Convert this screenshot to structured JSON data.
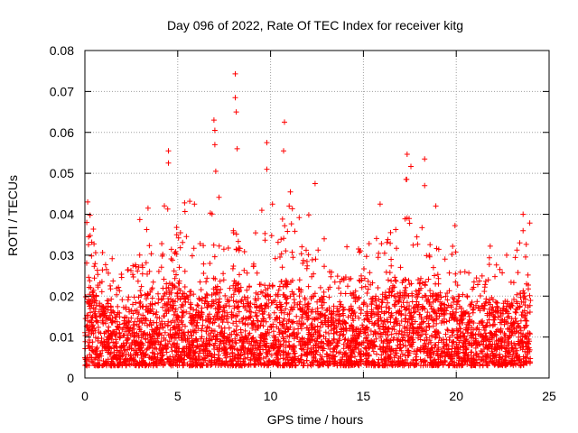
{
  "chart_data": {
    "type": "scatter",
    "title": "Day 096 of 2022, Rate Of TEC Index for receiver kitg",
    "xlabel": "GPS time / hours",
    "ylabel": "ROTI / TECUs",
    "xlim": [
      0,
      25
    ],
    "ylim": [
      0,
      0.08
    ],
    "x_ticks": [
      0,
      5,
      10,
      15,
      20,
      25
    ],
    "x_tick_labels": [
      "0",
      "5",
      "10",
      "15",
      "20",
      "25"
    ],
    "y_ticks": [
      0,
      0.01,
      0.02,
      0.03,
      0.04,
      0.05,
      0.06,
      0.07,
      0.08
    ],
    "y_tick_labels": [
      "0",
      "0.01",
      "0.02",
      "0.03",
      "0.04",
      "0.05",
      "0.06",
      "0.07",
      "0.08"
    ],
    "grid": true,
    "marker": "+",
    "color": "#ff0000",
    "series": [
      {
        "name": "ROTI",
        "x_range": [
          0,
          24
        ],
        "typical_band": [
          0.003,
          0.025
        ],
        "notable_points": [
          {
            "x": 8.1,
            "y": 0.0743
          },
          {
            "x": 8.1,
            "y": 0.0685
          },
          {
            "x": 8.15,
            "y": 0.065
          },
          {
            "x": 6.95,
            "y": 0.063
          },
          {
            "x": 7.0,
            "y": 0.0605
          },
          {
            "x": 7.0,
            "y": 0.057
          },
          {
            "x": 10.75,
            "y": 0.0625
          },
          {
            "x": 10.7,
            "y": 0.0555
          },
          {
            "x": 9.8,
            "y": 0.0575
          },
          {
            "x": 4.5,
            "y": 0.0555
          },
          {
            "x": 4.5,
            "y": 0.0525
          },
          {
            "x": 8.2,
            "y": 0.056
          },
          {
            "x": 18.3,
            "y": 0.0535
          },
          {
            "x": 9.8,
            "y": 0.051
          },
          {
            "x": 7.05,
            "y": 0.0505
          },
          {
            "x": 17.3,
            "y": 0.0485
          },
          {
            "x": 18.3,
            "y": 0.047
          },
          {
            "x": 12.4,
            "y": 0.0475
          },
          {
            "x": 0.15,
            "y": 0.043
          },
          {
            "x": 18.9,
            "y": 0.042
          },
          {
            "x": 23.6,
            "y": 0.04
          },
          {
            "x": 3.4,
            "y": 0.0415
          },
          {
            "x": 5.9,
            "y": 0.0425
          },
          {
            "x": 15.9,
            "y": 0.0425
          },
          {
            "x": 0.1,
            "y": 0.038
          },
          {
            "x": 0.2,
            "y": 0.0345
          },
          {
            "x": 11.0,
            "y": 0.042
          },
          {
            "x": 10.1,
            "y": 0.0425
          },
          {
            "x": 23.6,
            "y": 0.036
          }
        ]
      }
    ]
  }
}
